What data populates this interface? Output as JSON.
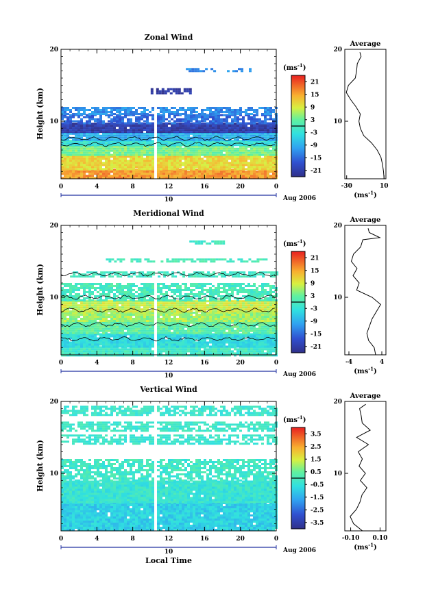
{
  "figure": {
    "xlabel": "Local Time",
    "date_label": "Aug 2006",
    "day_label": "10"
  },
  "chart_data": [
    {
      "type": "heatmap",
      "title": "Zonal Wind",
      "ylabel": "Height (km)",
      "x_ticks": [
        "0",
        "4",
        "8",
        "12",
        "16",
        "20",
        "0"
      ],
      "y_ticks": [
        "20",
        "10"
      ],
      "xlim": [
        0,
        24
      ],
      "ylim": [
        2,
        20
      ],
      "colorbar": {
        "unit": "(ms",
        "unit_exp": "-1",
        "unit_close": ")",
        "ticks": [
          "21",
          "15",
          "9",
          "3",
          "-3",
          "-9",
          "-15",
          "-21"
        ],
        "range": [
          -24,
          24
        ]
      },
      "average": {
        "title": "Average",
        "x_ticks": [
          "-30",
          "10"
        ],
        "xlim": [
          -32,
          12
        ],
        "unit": "(ms",
        "unit_exp": "-1",
        "unit_close": ")"
      },
      "layers": [
        {
          "from_km": 2.0,
          "to_km": 3.4,
          "value": 16
        },
        {
          "from_km": 3.4,
          "to_km": 5.2,
          "value": 11
        },
        {
          "from_km": 5.2,
          "to_km": 6.6,
          "value": 4
        },
        {
          "from_km": 6.6,
          "to_km": 7.4,
          "value": -3
        },
        {
          "from_km": 7.4,
          "to_km": 8.4,
          "value": -9
        },
        {
          "from_km": 8.4,
          "to_km": 9.8,
          "value": -21
        },
        {
          "from_km": 9.8,
          "to_km": 11.0,
          "value": -15
        },
        {
          "from_km": 11.0,
          "to_km": 12.0,
          "value": -12
        }
      ],
      "upper_patches": [
        {
          "x_from": 10,
          "x_to": 14.5,
          "from_km": 14.0,
          "to_km": 14.6,
          "value": -22
        },
        {
          "x_from": 13,
          "x_to": 17,
          "from_km": 17.0,
          "to_km": 17.4,
          "value": -12
        },
        {
          "x_from": 18.5,
          "x_to": 21,
          "from_km": 17.0,
          "to_km": 17.4,
          "value": -12
        }
      ],
      "profile": [
        [
          2,
          10
        ],
        [
          3,
          10
        ],
        [
          4,
          9
        ],
        [
          5,
          7
        ],
        [
          6,
          3
        ],
        [
          7,
          -4
        ],
        [
          8,
          -12
        ],
        [
          9,
          -16
        ],
        [
          10,
          -17
        ],
        [
          11,
          -15
        ],
        [
          12,
          -20
        ],
        [
          13,
          -26
        ],
        [
          14,
          -30
        ],
        [
          15,
          -28
        ],
        [
          16,
          -21
        ],
        [
          17,
          -19
        ],
        [
          18,
          -18
        ],
        [
          19,
          -15
        ],
        [
          19.6,
          -16
        ]
      ]
    },
    {
      "type": "heatmap",
      "title": "Meridional Wind",
      "ylabel": "Height (km)",
      "x_ticks": [
        "0",
        "4",
        "8",
        "12",
        "16",
        "20",
        "0"
      ],
      "y_ticks": [
        "20",
        "10"
      ],
      "xlim": [
        0,
        24
      ],
      "ylim": [
        2,
        20
      ],
      "colorbar": {
        "unit": "(ms",
        "unit_exp": "-1",
        "unit_close": ")",
        "ticks": [
          "21",
          "15",
          "9",
          "3",
          "-3",
          "-9",
          "-15",
          "-21"
        ],
        "range": [
          -24,
          24
        ]
      },
      "average": {
        "title": "Average",
        "x_ticks": [
          "-4",
          "4"
        ],
        "xlim": [
          -5,
          5
        ],
        "unit": "(ms",
        "unit_exp": "-1",
        "unit_close": ")"
      },
      "layers": [
        {
          "from_km": 2.0,
          "to_km": 3.2,
          "value": -1
        },
        {
          "from_km": 3.2,
          "to_km": 5.0,
          "value": -4
        },
        {
          "from_km": 5.0,
          "to_km": 6.6,
          "value": 2
        },
        {
          "from_km": 6.6,
          "to_km": 8.0,
          "value": 6
        },
        {
          "from_km": 8.0,
          "to_km": 9.6,
          "value": 8
        },
        {
          "from_km": 9.6,
          "to_km": 12.0,
          "value": 0
        }
      ],
      "upper_patches": [
        {
          "x_from": 1,
          "x_to": 24,
          "from_km": 13.0,
          "to_km": 13.6,
          "value": -1
        },
        {
          "x_from": 5,
          "x_to": 23,
          "from_km": 15.0,
          "to_km": 15.4,
          "value": 0
        },
        {
          "x_from": 14,
          "x_to": 18,
          "from_km": 17.6,
          "to_km": 17.9,
          "value": -1
        }
      ],
      "profile": [
        [
          2,
          2.5
        ],
        [
          3,
          2
        ],
        [
          4,
          0.8
        ],
        [
          5,
          0.3
        ],
        [
          6,
          1
        ],
        [
          7,
          1.8
        ],
        [
          8,
          2.6
        ],
        [
          9,
          3.6
        ],
        [
          10,
          1.5
        ],
        [
          11,
          -2
        ],
        [
          12,
          -1.5
        ],
        [
          13,
          -3
        ],
        [
          14,
          -2
        ],
        [
          15,
          -3.5
        ],
        [
          16,
          -2.8
        ],
        [
          17,
          -1
        ],
        [
          18,
          -0.5
        ],
        [
          18.3,
          3.5
        ],
        [
          19,
          1
        ],
        [
          19.6,
          0.5
        ]
      ]
    },
    {
      "type": "heatmap",
      "title": "Vertical Wind",
      "ylabel": "Height (km)",
      "x_ticks": [
        "0",
        "4",
        "8",
        "12",
        "16",
        "20",
        "0"
      ],
      "y_ticks": [
        "20",
        "10"
      ],
      "xlim": [
        0,
        24
      ],
      "ylim": [
        2,
        20
      ],
      "colorbar": {
        "unit": "(ms",
        "unit_exp": "-1",
        "unit_close": ")",
        "ticks": [
          "3.5",
          "2.5",
          "1.5",
          "0.5",
          "-0.5",
          "-1.5",
          "-2.5",
          "-3.5"
        ],
        "range": [
          -4,
          4
        ]
      },
      "average": {
        "title": "Average",
        "x_ticks": [
          "-0.10",
          "0.10"
        ],
        "xlim": [
          -0.14,
          0.14
        ],
        "unit": "(ms",
        "unit_exp": "-1",
        "unit_close": ")"
      },
      "layers": [
        {
          "from_km": 2.0,
          "to_km": 6.0,
          "value": -0.9
        },
        {
          "from_km": 6.0,
          "to_km": 9.0,
          "value": -0.4
        },
        {
          "from_km": 9.0,
          "to_km": 12.0,
          "value": -0.2
        }
      ],
      "upper_patches": [
        {
          "x_from": 0,
          "x_to": 24,
          "from_km": 14.2,
          "to_km": 15.4,
          "value": -0.3
        },
        {
          "x_from": 0,
          "x_to": 24,
          "from_km": 16.0,
          "to_km": 17.2,
          "value": -0.2
        },
        {
          "x_from": 0,
          "x_to": 24,
          "from_km": 18.2,
          "to_km": 19.4,
          "value": -0.3
        }
      ],
      "profile": [
        [
          2,
          -0.02
        ],
        [
          3,
          -0.08
        ],
        [
          4,
          -0.1
        ],
        [
          5,
          -0.06
        ],
        [
          6,
          -0.04
        ],
        [
          7,
          -0.02
        ],
        [
          8,
          0.01
        ],
        [
          9,
          -0.03
        ],
        [
          10,
          0.0
        ],
        [
          11,
          -0.04
        ],
        [
          12,
          -0.02
        ],
        [
          13,
          -0.05
        ],
        [
          14,
          0.02
        ],
        [
          15,
          -0.06
        ],
        [
          16,
          0.03
        ],
        [
          17,
          -0.02
        ],
        [
          18,
          -0.03
        ],
        [
          19,
          -0.04
        ],
        [
          19.6,
          0.0
        ]
      ]
    }
  ]
}
